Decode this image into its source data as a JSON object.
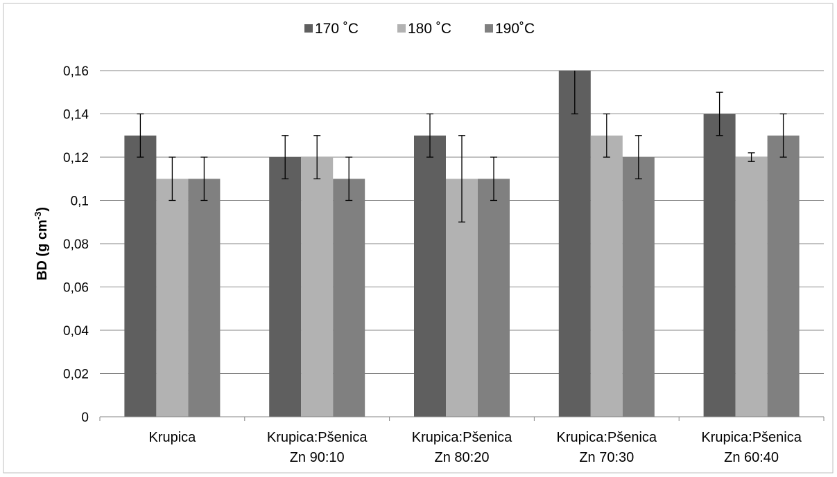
{
  "chart_data": {
    "type": "bar",
    "ylabel_main": "BD (g cm",
    "ylabel_sup": "-3",
    "ylabel_end": ")",
    "xlabel": "",
    "ylim": [
      0,
      0.16
    ],
    "yticks": [
      "0",
      "0,02",
      "0,04",
      "0,06",
      "0,08",
      "0,1",
      "0,12",
      "0,14",
      "0,16"
    ],
    "categories": [
      [
        "Krupica"
      ],
      [
        "Krupica:Pšenica",
        "Zn 90:10"
      ],
      [
        "Krupica:Pšenica",
        "Zn 80:20"
      ],
      [
        "Krupica:Pšenica",
        "Zn 70:30"
      ],
      [
        "Krupica:Pšenica",
        "Zn 60:40"
      ]
    ],
    "series": [
      {
        "name": "170 ˚C",
        "color": "#5f5f5f",
        "values": [
          0.13,
          0.12,
          0.13,
          0.16,
          0.14
        ],
        "errors": [
          0.01,
          0.01,
          0.01,
          0.02,
          0.01
        ]
      },
      {
        "name": "180 ˚C",
        "color": "#b2b2b2",
        "values": [
          0.11,
          0.12,
          0.11,
          0.13,
          0.12
        ],
        "errors": [
          0.01,
          0.01,
          0.02,
          0.01,
          0.002
        ]
      },
      {
        "name": "190˚C",
        "color": "#808080",
        "values": [
          0.11,
          0.11,
          0.11,
          0.12,
          0.13
        ],
        "errors": [
          0.01,
          0.01,
          0.01,
          0.01,
          0.01
        ]
      }
    ],
    "grid": true,
    "legend": "top-center"
  }
}
